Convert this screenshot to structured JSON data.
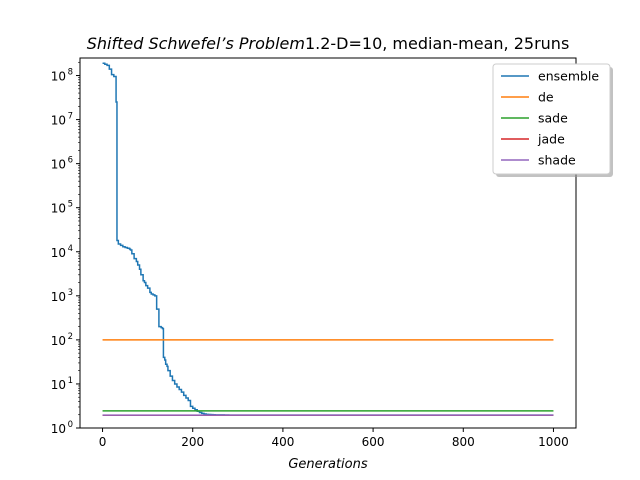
{
  "chart_data": {
    "type": "line",
    "title_italic": "Shifted Schwefel’s Problem",
    "title_rest": "1.2-D=10, median-mean, 25runs",
    "xlabel": "Generations",
    "ylabel": "",
    "xlim": [
      -50,
      1050
    ],
    "ylim": [
      1,
      250000000.0
    ],
    "yscale": "log",
    "grid": false,
    "legend_position": "top-right",
    "x_ticks": [
      0,
      200,
      400,
      600,
      800,
      1000
    ],
    "x_tick_labels": [
      "0",
      "200",
      "400",
      "600",
      "800",
      "1000"
    ],
    "y_ticks": [
      1,
      10,
      100,
      1000,
      10000,
      100000,
      1000000,
      10000000,
      100000000
    ],
    "y_tick_bases": [
      "10",
      "10",
      "10",
      "10",
      "10",
      "10",
      "10",
      "10",
      "10"
    ],
    "y_tick_exponents": [
      "0",
      "1",
      "2",
      "3",
      "4",
      "5",
      "6",
      "7",
      "8"
    ],
    "series": [
      {
        "name": "ensemble",
        "color": "#1f77b4",
        "step": true,
        "x": [
          0,
          5,
          10,
          15,
          20,
          25,
          30,
          32,
          35,
          40,
          45,
          50,
          55,
          60,
          62,
          65,
          70,
          75,
          78,
          82,
          85,
          90,
          93,
          96,
          100,
          105,
          108,
          112,
          116,
          120,
          125,
          130,
          133,
          135,
          138,
          140,
          143,
          145,
          150,
          155,
          160,
          165,
          170,
          175,
          180,
          185,
          190,
          195,
          200,
          205,
          210,
          215,
          220,
          225,
          230,
          235,
          240,
          245,
          250,
          260,
          270,
          280,
          300,
          1000
        ],
        "y": [
          190000000,
          180000000,
          170000000,
          140000000,
          105000000,
          95000000,
          25000000,
          18000,
          15000,
          14000,
          13000,
          12500,
          12000,
          11500,
          11000,
          9000,
          7000,
          6000,
          5000,
          4000,
          3000,
          2200,
          2000,
          1700,
          1500,
          1200,
          1100,
          1050,
          1000,
          500,
          200,
          190,
          180,
          40,
          35,
          28,
          25,
          20,
          15,
          12,
          10,
          8.5,
          7.5,
          6.5,
          5.5,
          4.8,
          4.2,
          3.1,
          2.8,
          2.6,
          2.4,
          2.25,
          2.15,
          2.08,
          2.04,
          2.02,
          2.01,
          2.0,
          1.99,
          1.98,
          1.97,
          1.96,
          1.96,
          1.96
        ]
      },
      {
        "name": "de",
        "color": "#ff7f0e",
        "x": [
          0,
          1000
        ],
        "y": [
          100,
          100
        ]
      },
      {
        "name": "sade",
        "color": "#2ca02c",
        "x": [
          0,
          1000
        ],
        "y": [
          2.45,
          2.45
        ]
      },
      {
        "name": "jade",
        "color": "#d62728",
        "x": [
          0,
          1000
        ],
        "y": [
          1.95,
          1.95
        ]
      },
      {
        "name": "shade",
        "color": "#9467bd",
        "x": [
          0,
          1000
        ],
        "y": [
          1.96,
          1.96
        ]
      }
    ]
  }
}
